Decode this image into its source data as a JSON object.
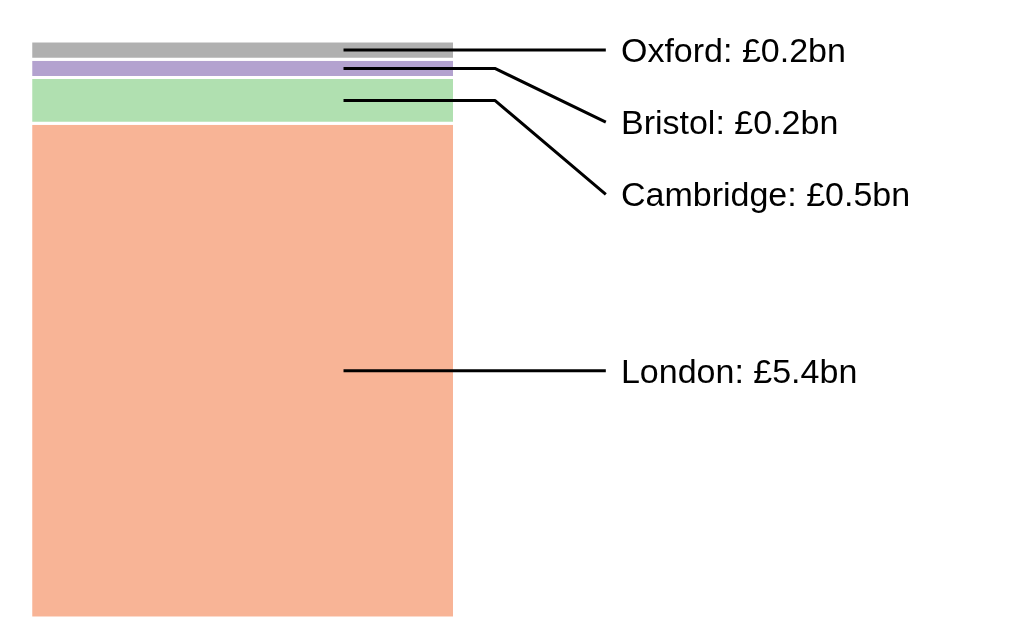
{
  "chart_data": {
    "type": "bar",
    "stacked": true,
    "categories": [
      null
    ],
    "tick_labels": false,
    "series": [
      {
        "color": "#f8b496",
        "values": [
          5.4
        ],
        "value_labels": [
          "London: £5.4bn"
        ]
      },
      {
        "color": "#b0e0b0",
        "values": [
          0.5
        ],
        "value_labels": [
          "Cambridge: £0.5bn"
        ]
      },
      {
        "color": "#b3a2cf",
        "values": [
          0.2
        ],
        "value_labels": [
          "Bristol: £0.2bn"
        ]
      },
      {
        "color": "#b0b0b0",
        "values": [
          0.2
        ],
        "value_labels": [
          "Oxford: £0.2bn"
        ]
      }
    ]
  }
}
